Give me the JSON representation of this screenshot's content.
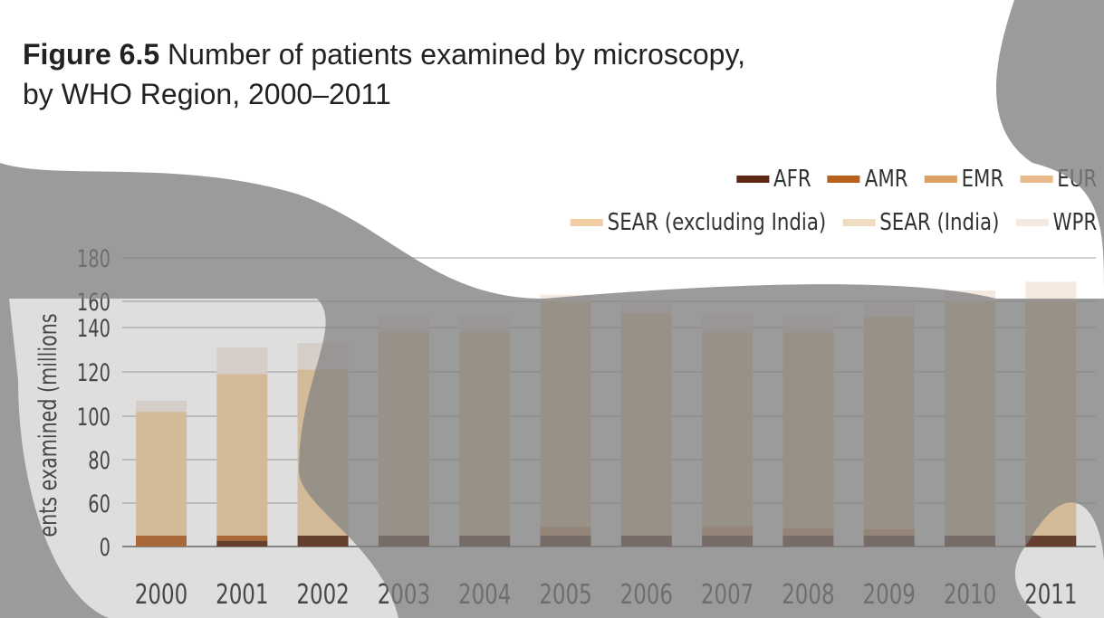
{
  "title": {
    "prefix": "Figure 6.5",
    "line1": "Number of patients examined by microscopy,",
    "line2": "by WHO Region, 2000–2011"
  },
  "chart_data": {
    "type": "bar",
    "stacked": true,
    "ylabel": "Patients examined (millions)",
    "ylabel_visible": "ents examined (millions",
    "yticks": [
      0,
      60,
      80,
      100,
      120,
      140,
      160,
      180
    ],
    "ylim": [
      0,
      180
    ],
    "grid": true,
    "legend_position": "top-right",
    "categories": [
      "2000",
      "2001",
      "2002",
      "2003",
      "2004",
      "2005",
      "2006",
      "2007",
      "2008",
      "2009",
      "2010",
      "2011"
    ],
    "series": [
      {
        "name": "AFR",
        "color": "#5c2a14",
        "values": [
          0,
          8,
          15,
          15,
          15,
          15,
          15,
          15,
          15,
          15,
          15,
          15
        ]
      },
      {
        "name": "AMR",
        "color": "#b8601f",
        "values": [
          15,
          7,
          0,
          0,
          0,
          0,
          0,
          0,
          0,
          0,
          0,
          0
        ]
      },
      {
        "name": "EMR",
        "color": "#d9a062",
        "values": [
          0,
          0,
          0,
          0,
          0,
          12,
          0,
          13,
          10,
          9,
          0,
          0
        ]
      },
      {
        "name": "EUR",
        "color": "#e8b98a",
        "values": [
          0,
          0,
          0,
          0,
          0,
          0,
          0,
          0,
          0,
          0,
          0,
          0
        ]
      },
      {
        "name": "SEAR (excluding India)",
        "color": "#f1cfa3",
        "values": [
          87,
          104,
          106,
          123,
          123,
          133,
          136,
          110,
          113,
          124,
          145,
          145
        ]
      },
      {
        "name": "SEAR (India)",
        "color": "#f0dcc2",
        "values": [
          0,
          0,
          0,
          0,
          0,
          0,
          0,
          0,
          0,
          0,
          0,
          0
        ]
      },
      {
        "name": "WPR",
        "color": "#f3e9e1",
        "values": [
          5,
          12,
          12,
          11,
          11,
          3,
          9,
          12,
          11,
          12,
          5,
          9
        ]
      }
    ]
  }
}
